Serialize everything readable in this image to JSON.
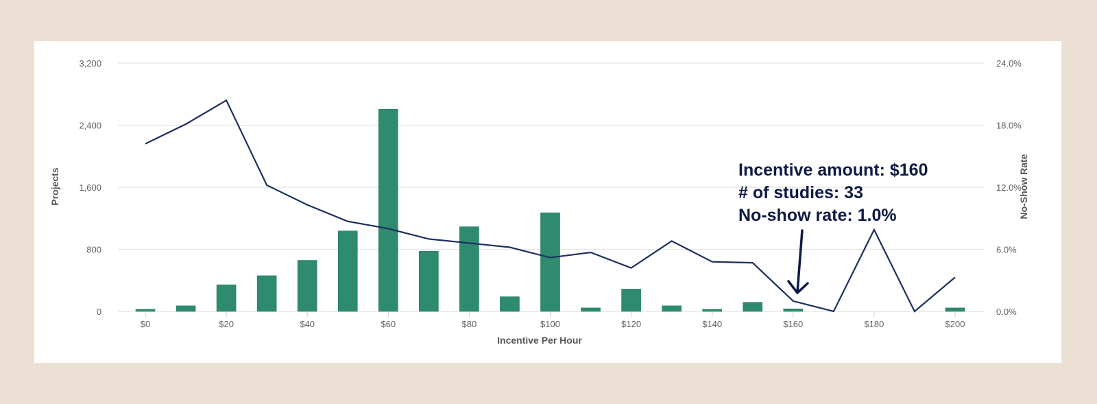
{
  "colors": {
    "background": "#ece0d4",
    "card": "#ffffff",
    "bar": "#2e8b70",
    "bar_edge": "#1f7a5e",
    "line": "#1b2f5e",
    "gridline": "#e4e4e4",
    "tick_mark": "#c5cde6",
    "annotation": "#0f1a45"
  },
  "chart_data": {
    "type": "bar",
    "combo": "bar + line (dual axis)",
    "title": "",
    "xlabel": "Incentive Per Hour",
    "ylabel": "Projects",
    "y2label": "No-Show Rate",
    "ylim": [
      0,
      3200
    ],
    "y2lim": [
      0,
      24
    ],
    "yticks": [
      "0",
      "800",
      "1,600",
      "2,400",
      "3,200"
    ],
    "y2ticks": [
      "0.0%",
      "6.0%",
      "12.0%",
      "18.0%",
      "24.0%"
    ],
    "xtick_labels": [
      "$0",
      "$20",
      "$40",
      "$60",
      "$80",
      "$100",
      "$120",
      "$140",
      "$160",
      "$180",
      "$200"
    ],
    "grid": true,
    "legend": "none",
    "categories": [
      "$0",
      "$10",
      "$20",
      "$30",
      "$40",
      "$50",
      "$60",
      "$70",
      "$80",
      "$90",
      "$100",
      "$110",
      "$120",
      "$130",
      "$140",
      "$150",
      "$160",
      "$170",
      "$180",
      "$190",
      "$200"
    ],
    "series": [
      {
        "name": "Projects",
        "type": "bar",
        "axis": "left",
        "values": [
          27,
          72,
          343,
          460,
          658,
          1037,
          2606,
          775,
          1091,
          189,
          1271,
          45,
          288,
          72,
          27,
          117,
          33,
          0,
          0,
          0,
          45
        ]
      },
      {
        "name": "No-Show Rate",
        "type": "line",
        "axis": "right",
        "unit": "%",
        "values": [
          16.2,
          18.1,
          20.4,
          12.2,
          10.3,
          8.7,
          8.0,
          7.0,
          6.6,
          6.2,
          5.2,
          5.7,
          4.2,
          6.8,
          4.8,
          4.7,
          1.0,
          0.0,
          7.9,
          0.0,
          3.3
        ]
      }
    ],
    "annotations": [
      {
        "lines": [
          "Incentive amount: $160",
          "# of studies: 33",
          "No-show rate: 1.0%"
        ],
        "points_to": "$160"
      }
    ]
  },
  "annotation": {
    "line1": "Incentive amount: $160",
    "line2": "# of studies: 33",
    "line3": "No-show rate: 1.0%"
  },
  "axes": {
    "x_title": "Incentive Per Hour",
    "y_left_title": "Projects",
    "y_right_title": "No-Show Rate"
  }
}
